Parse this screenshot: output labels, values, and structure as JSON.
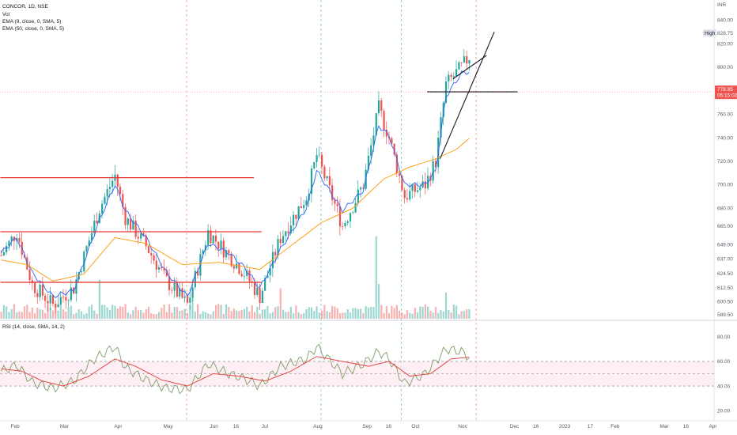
{
  "legend": {
    "symbol": "CONCOR, 1D, NSE",
    "vol": "Vol",
    "ema_fast": "EMA (9, close, 0, SMA, 5)",
    "ema_slow": "EMA (50, close, 0, SMA, 5)",
    "rsi": "RSI (14, close, SMA, 14, 2)"
  },
  "currency": "INR",
  "high_label": "High",
  "high_value": "828.75",
  "current_price": "778.95",
  "countdown": "05:15:02",
  "colors": {
    "up": "#26a69a",
    "down": "#ef5350",
    "ema_fast": "#2962ff",
    "ema_slow": "#ff9800",
    "rsi": "#7e9e69",
    "rsi_ma": "#e53935",
    "rsi_band": "#fce4ec",
    "drawn_red": "#e53935",
    "drawn_black": "#131722"
  },
  "chart_data": {
    "type": "candlestick",
    "price_axis": {
      "ticks": [
        "840.00",
        "820.00",
        "800.00",
        "780.00",
        "760.00",
        "740.00",
        "720.00",
        "700.00",
        "680.00",
        "665.00",
        "649.00",
        "637.00",
        "624.50",
        "612.50",
        "600.50",
        "589.50"
      ],
      "range": [
        586,
        845
      ]
    },
    "rsi_axis": {
      "ticks": [
        "80.00",
        "60.00",
        "40.00",
        "20.00"
      ],
      "range": [
        15,
        85
      ],
      "band": [
        40,
        60
      ]
    },
    "time_axis": [
      "Feb",
      "Mar",
      "Apr",
      "May",
      "Jun",
      "16",
      "Jul",
      "Aug",
      "Sep",
      "16",
      "Oct",
      "Nov",
      "Dec",
      "16",
      "2023",
      "17",
      "Feb",
      "Mar",
      "16",
      "Apr"
    ],
    "time_axis_pos": [
      4,
      23,
      44,
      63,
      81,
      90,
      101,
      121,
      140,
      149,
      159,
      177,
      197,
      206,
      216,
      227,
      236,
      255,
      264,
      274
    ],
    "bars_count": 182,
    "session_start_price": 640,
    "candles_anchor": [
      [
        0,
        640
      ],
      [
        6,
        660
      ],
      [
        12,
        615
      ],
      [
        20,
        598
      ],
      [
        28,
        612
      ],
      [
        38,
        680
      ],
      [
        44,
        708
      ],
      [
        48,
        672
      ],
      [
        56,
        648
      ],
      [
        64,
        618
      ],
      [
        72,
        598
      ],
      [
        80,
        660
      ],
      [
        88,
        640
      ],
      [
        94,
        625
      ],
      [
        100,
        605
      ],
      [
        108,
        655
      ],
      [
        118,
        690
      ],
      [
        122,
        725
      ],
      [
        132,
        665
      ],
      [
        140,
        700
      ],
      [
        146,
        765
      ],
      [
        150,
        740
      ],
      [
        156,
        690
      ],
      [
        164,
        700
      ],
      [
        168,
        720
      ],
      [
        172,
        785
      ],
      [
        178,
        800
      ],
      [
        182,
        812
      ],
      [
        184,
        779
      ]
    ],
    "ema_fast_anchor": [
      [
        0,
        642
      ],
      [
        6,
        655
      ],
      [
        12,
        625
      ],
      [
        20,
        605
      ],
      [
        28,
        610
      ],
      [
        38,
        670
      ],
      [
        44,
        700
      ],
      [
        48,
        678
      ],
      [
        56,
        655
      ],
      [
        64,
        625
      ],
      [
        72,
        605
      ],
      [
        80,
        650
      ],
      [
        88,
        642
      ],
      [
        94,
        630
      ],
      [
        100,
        612
      ],
      [
        108,
        645
      ],
      [
        118,
        680
      ],
      [
        122,
        712
      ],
      [
        132,
        678
      ],
      [
        140,
        695
      ],
      [
        146,
        750
      ],
      [
        150,
        742
      ],
      [
        156,
        700
      ],
      [
        164,
        700
      ],
      [
        168,
        712
      ],
      [
        172,
        775
      ],
      [
        178,
        795
      ],
      [
        184,
        797
      ]
    ],
    "ema_slow_anchor": [
      [
        0,
        636
      ],
      [
        10,
        632
      ],
      [
        20,
        618
      ],
      [
        32,
        624
      ],
      [
        44,
        655
      ],
      [
        56,
        650
      ],
      [
        70,
        632
      ],
      [
        84,
        634
      ],
      [
        100,
        628
      ],
      [
        112,
        648
      ],
      [
        124,
        668
      ],
      [
        136,
        680
      ],
      [
        148,
        705
      ],
      [
        158,
        715
      ],
      [
        168,
        722
      ],
      [
        176,
        730
      ],
      [
        184,
        745
      ]
    ],
    "rsi_anchor": [
      [
        0,
        52
      ],
      [
        6,
        57
      ],
      [
        12,
        43
      ],
      [
        20,
        38
      ],
      [
        28,
        44
      ],
      [
        36,
        62
      ],
      [
        44,
        72
      ],
      [
        48,
        55
      ],
      [
        56,
        45
      ],
      [
        64,
        38
      ],
      [
        72,
        37
      ],
      [
        80,
        58
      ],
      [
        88,
        50
      ],
      [
        94,
        46
      ],
      [
        100,
        40
      ],
      [
        108,
        56
      ],
      [
        118,
        62
      ],
      [
        122,
        72
      ],
      [
        132,
        50
      ],
      [
        140,
        58
      ],
      [
        146,
        68
      ],
      [
        150,
        62
      ],
      [
        156,
        42
      ],
      [
        164,
        50
      ],
      [
        168,
        60
      ],
      [
        172,
        70
      ],
      [
        178,
        68
      ],
      [
        184,
        59
      ]
    ],
    "rsi_ma_anchor": [
      [
        0,
        54
      ],
      [
        8,
        52
      ],
      [
        16,
        44
      ],
      [
        24,
        40
      ],
      [
        34,
        48
      ],
      [
        44,
        62
      ],
      [
        52,
        56
      ],
      [
        62,
        45
      ],
      [
        72,
        40
      ],
      [
        82,
        50
      ],
      [
        92,
        48
      ],
      [
        102,
        44
      ],
      [
        112,
        52
      ],
      [
        122,
        64
      ],
      [
        132,
        60
      ],
      [
        142,
        56
      ],
      [
        150,
        60
      ],
      [
        158,
        48
      ],
      [
        166,
        50
      ],
      [
        174,
        62
      ],
      [
        184,
        64
      ]
    ],
    "volume_spikes": [
      [
        145,
        0.95
      ],
      [
        146,
        0.4
      ],
      [
        38,
        0.45
      ],
      [
        172,
        0.3
      ],
      [
        74,
        0.25
      ],
      [
        108,
        0.35
      ]
    ],
    "horizontal_lines": [
      {
        "price": 706,
        "x_from": 0,
        "x_to": 98
      },
      {
        "price": 660,
        "x_from": 0,
        "x_to": 101
      },
      {
        "price": 617,
        "x_from": 0,
        "x_to": 101
      },
      {
        "price": 779,
        "x_from": 165,
        "x_to": 200,
        "color": "black"
      }
    ],
    "trend_lines": [
      {
        "from": [
          170,
          722
        ],
        "to": [
          191,
          830
        ]
      },
      {
        "from": [
          175,
          790
        ],
        "to": [
          188,
          810
        ]
      }
    ],
    "vertical_session_lines": [
      72,
      124,
      155,
      184
    ]
  }
}
